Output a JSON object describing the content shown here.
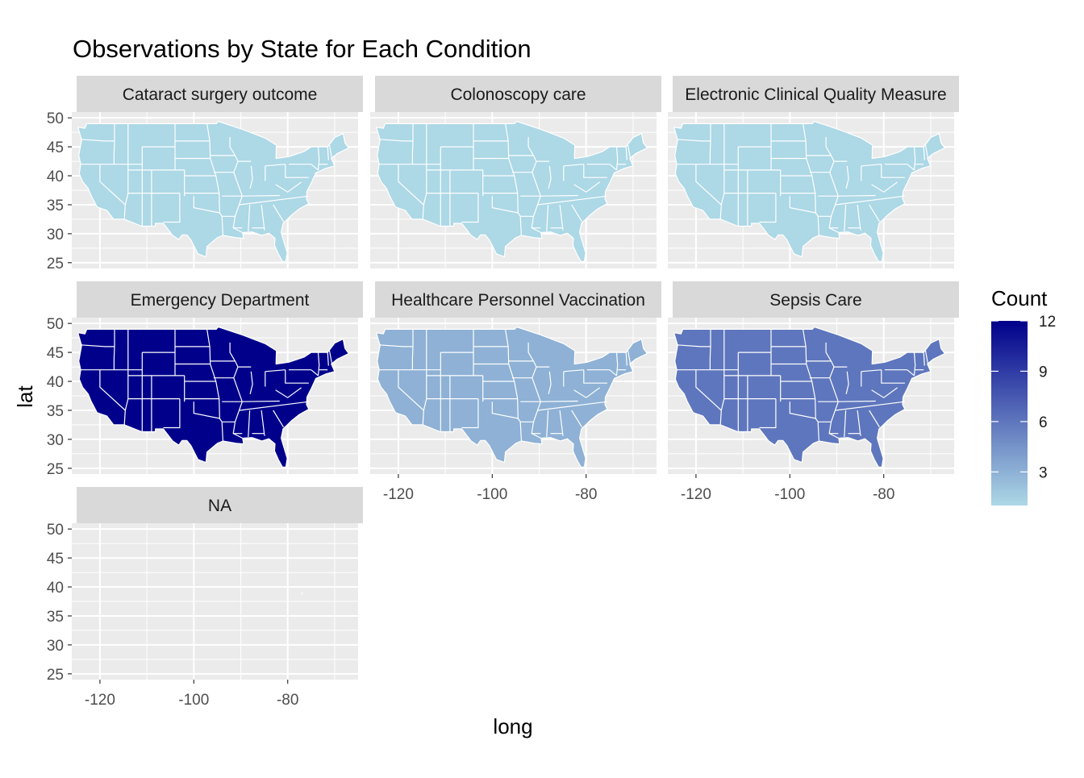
{
  "title": "Observations by State for Each Condition",
  "x_label": "long",
  "y_label": "lat",
  "legend": {
    "title": "Count",
    "ticks": [
      3,
      6,
      9,
      12
    ],
    "min": 1,
    "max": 12,
    "low_color": "#add8e6",
    "high_color": "#00008b"
  },
  "x_ticks": [
    -120,
    -100,
    -80
  ],
  "y_ticks": [
    25,
    30,
    35,
    40,
    45,
    50
  ],
  "colors": {
    "panel_bg": "#ebebeb",
    "strip_bg": "#d9d9d9",
    "grid": "#ffffff",
    "state_border": "#ffffff"
  },
  "facets": [
    {
      "label": "Cataract surgery outcome",
      "count": 1
    },
    {
      "label": "Colonoscopy care",
      "count": 1
    },
    {
      "label": "Electronic Clinical Quality Measure",
      "count": 1
    },
    {
      "label": "Emergency Department",
      "count": 12
    },
    {
      "label": "Healthcare Personnel Vaccination",
      "count": 3
    },
    {
      "label": "Sepsis Care",
      "count": 6
    },
    {
      "label": "NA",
      "count": null
    }
  ],
  "chart_data": {
    "type": "map",
    "title": "Observations by State for Each Condition",
    "xlabel": "long",
    "ylabel": "lat",
    "xlim": [
      -126,
      -65
    ],
    "ylim": [
      24,
      51
    ],
    "categories": [
      "Cataract surgery outcome",
      "Colonoscopy care",
      "Electronic Clinical Quality Measure",
      "Emergency Department",
      "Healthcare Personnel Vaccination",
      "Sepsis Care",
      "NA"
    ],
    "values": [
      1,
      1,
      1,
      12,
      3,
      6,
      null
    ]
  }
}
